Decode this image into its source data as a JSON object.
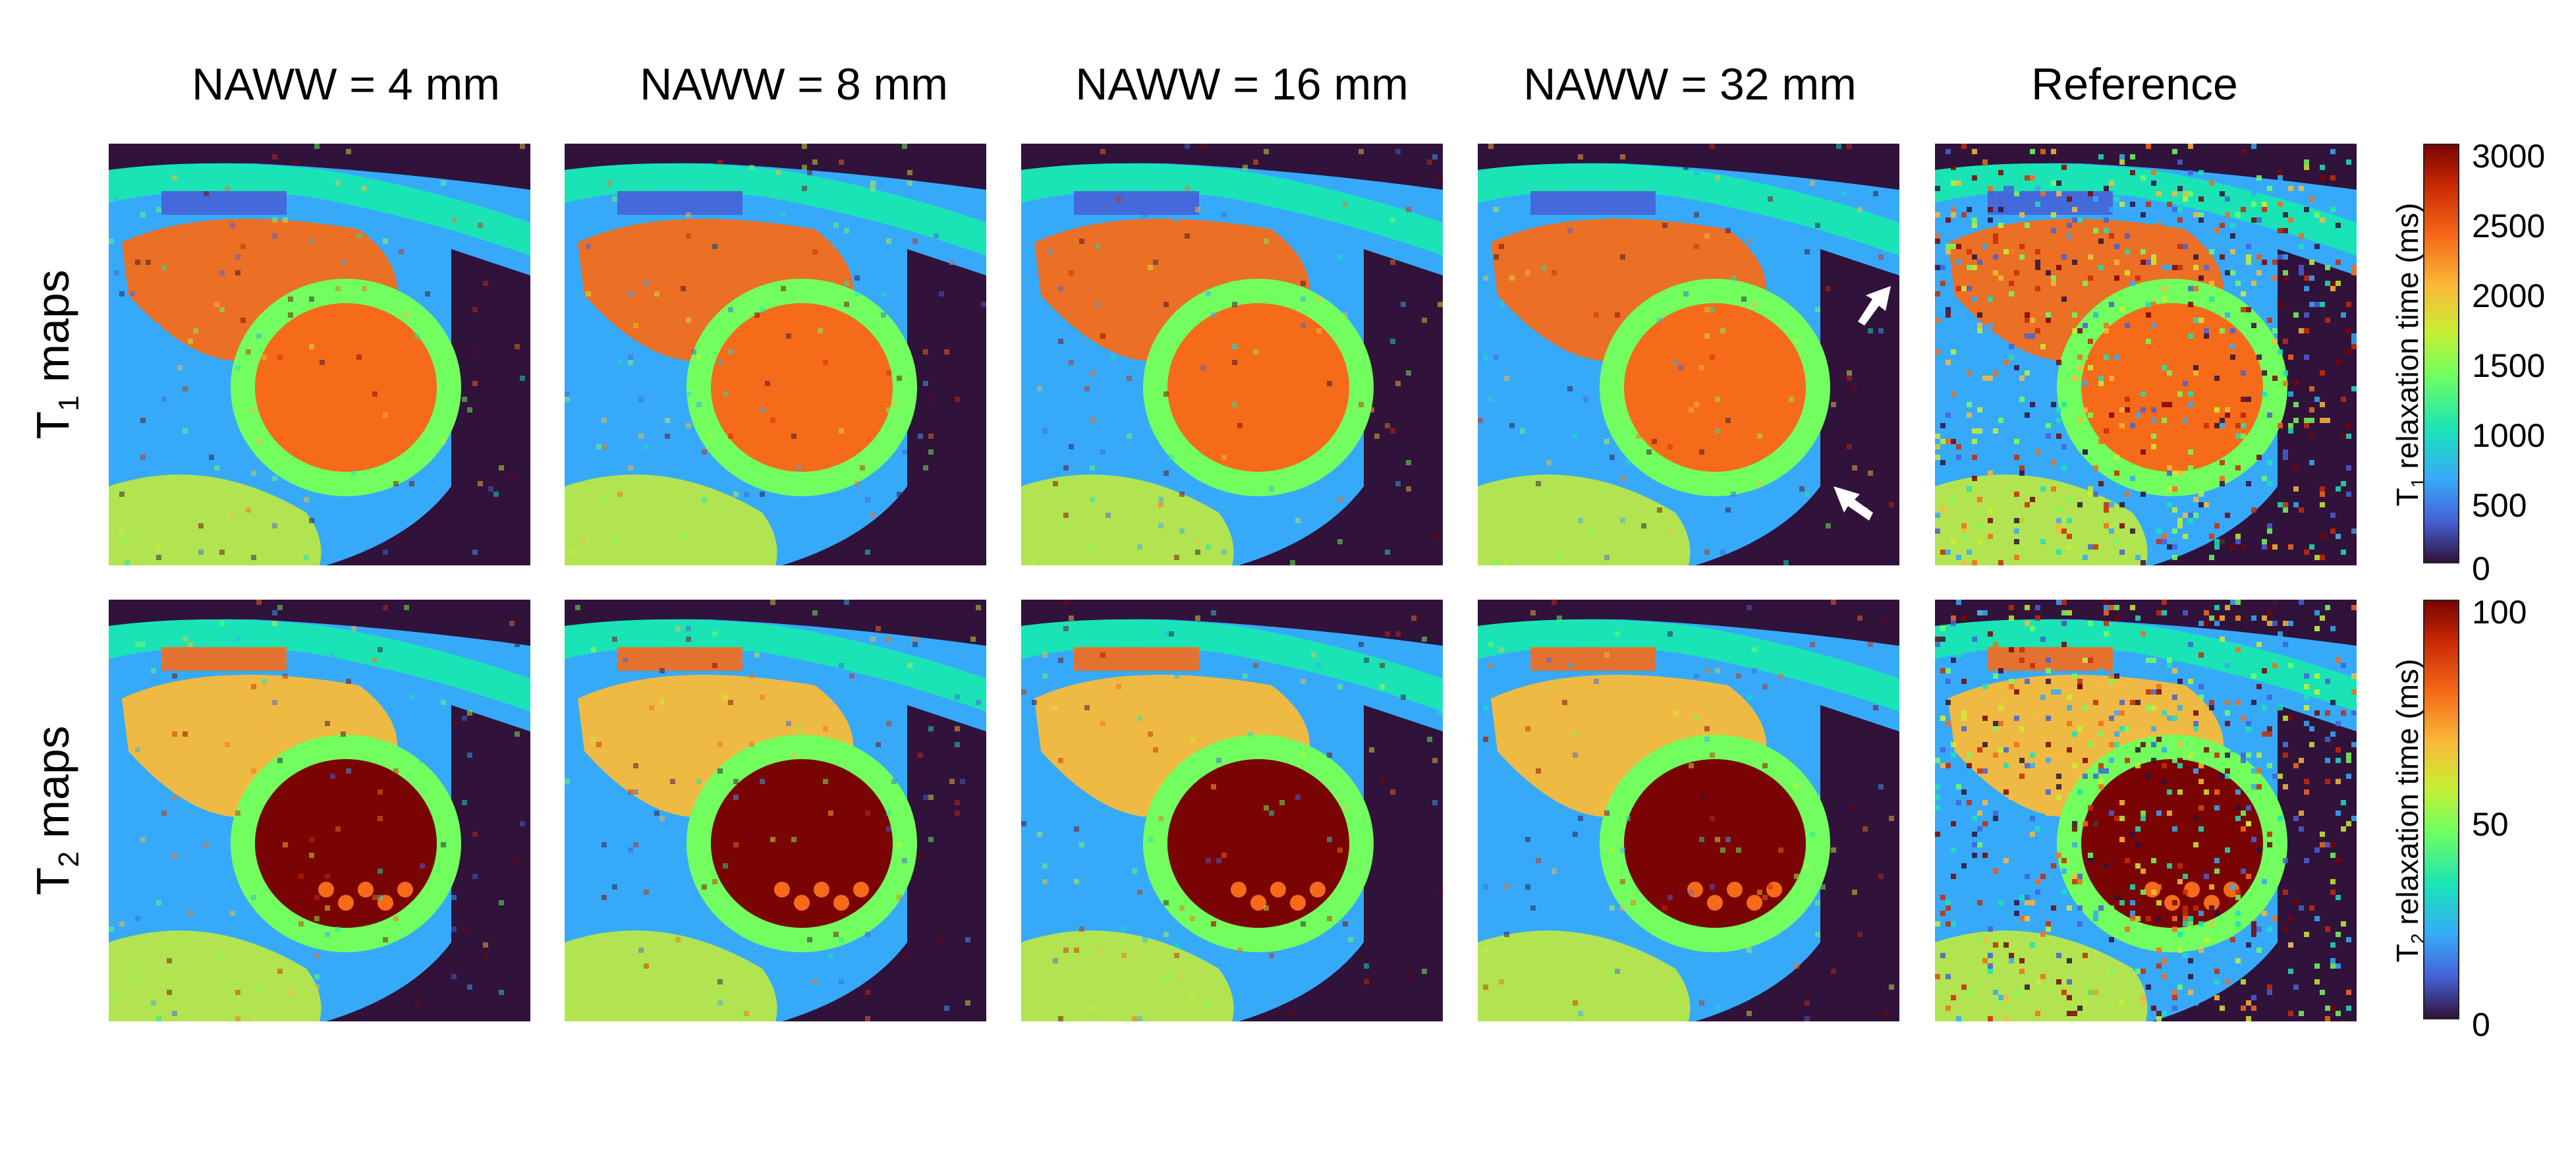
{
  "column_titles": [
    "NAWW = 4 mm",
    "NAWW = 8 mm",
    "NAWW = 16 mm",
    "NAWW = 32 mm",
    "Reference"
  ],
  "rows": [
    {
      "symbol": "T",
      "subscript": "1",
      "suffix": " maps"
    },
    {
      "symbol": "T",
      "subscript": "2",
      "suffix": " maps"
    }
  ],
  "colorbars": [
    {
      "symbol": "T",
      "subscript": "1",
      "label": " relaxation time  (ms)",
      "ticks": [
        "3000",
        "2500",
        "2000",
        "1500",
        "1000",
        "500",
        "0"
      ],
      "min": 0,
      "max": 3000
    },
    {
      "symbol": "T",
      "subscript": "2",
      "label": " relaxation time  (ms)",
      "ticks": [
        "100",
        "50",
        "0"
      ],
      "min": 0,
      "max": 100
    }
  ],
  "colormap": [
    "#30123b",
    "#4662d7",
    "#36aaf9",
    "#1ae4b6",
    "#72fe5e",
    "#c8ef34",
    "#faba39",
    "#f66b19",
    "#ca2a04",
    "#7a0403"
  ],
  "arrow_color": "#ffffff"
}
